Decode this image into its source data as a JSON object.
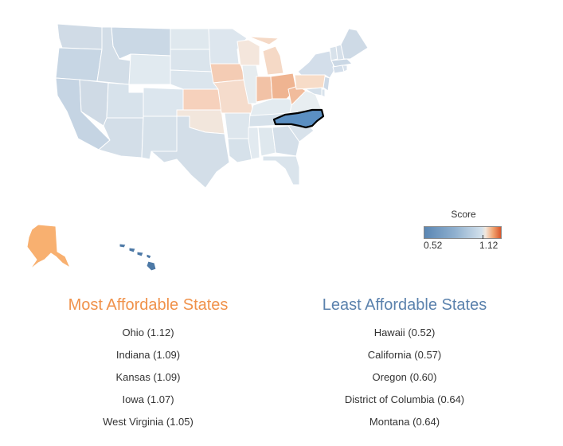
{
  "legend": {
    "title": "Score",
    "min_label": "0.52",
    "max_label": "1.12"
  },
  "colors": {
    "high": "#d9562b",
    "low": "#5a86b3",
    "neutral": "#dbe4ec",
    "highlight_state": "#5b8fc2",
    "alaska": "#f8b070",
    "hawaii": "#4d79a6",
    "most_title": "#f0924b",
    "least_title": "#5b82ad"
  },
  "map": {
    "highlighted_state": "North Carolina"
  },
  "most_affordable": {
    "title": "Most Affordable States",
    "items": [
      {
        "state": "Ohio",
        "score": "(1.12)"
      },
      {
        "state": "Indiana",
        "score": "(1.09)"
      },
      {
        "state": "Kansas",
        "score": "(1.09)"
      },
      {
        "state": "Iowa",
        "score": "(1.07)"
      },
      {
        "state": "West Virginia",
        "score": "(1.05)"
      }
    ]
  },
  "least_affordable": {
    "title": "Least Affordable States",
    "items": [
      {
        "state": "Hawaii",
        "score": "(0.52)"
      },
      {
        "state": "California",
        "score": "(0.57)"
      },
      {
        "state": "Oregon",
        "score": "(0.60)"
      },
      {
        "state": "District of Columbia",
        "score": "(0.64)"
      },
      {
        "state": "Montana",
        "score": "(0.64)"
      }
    ]
  }
}
